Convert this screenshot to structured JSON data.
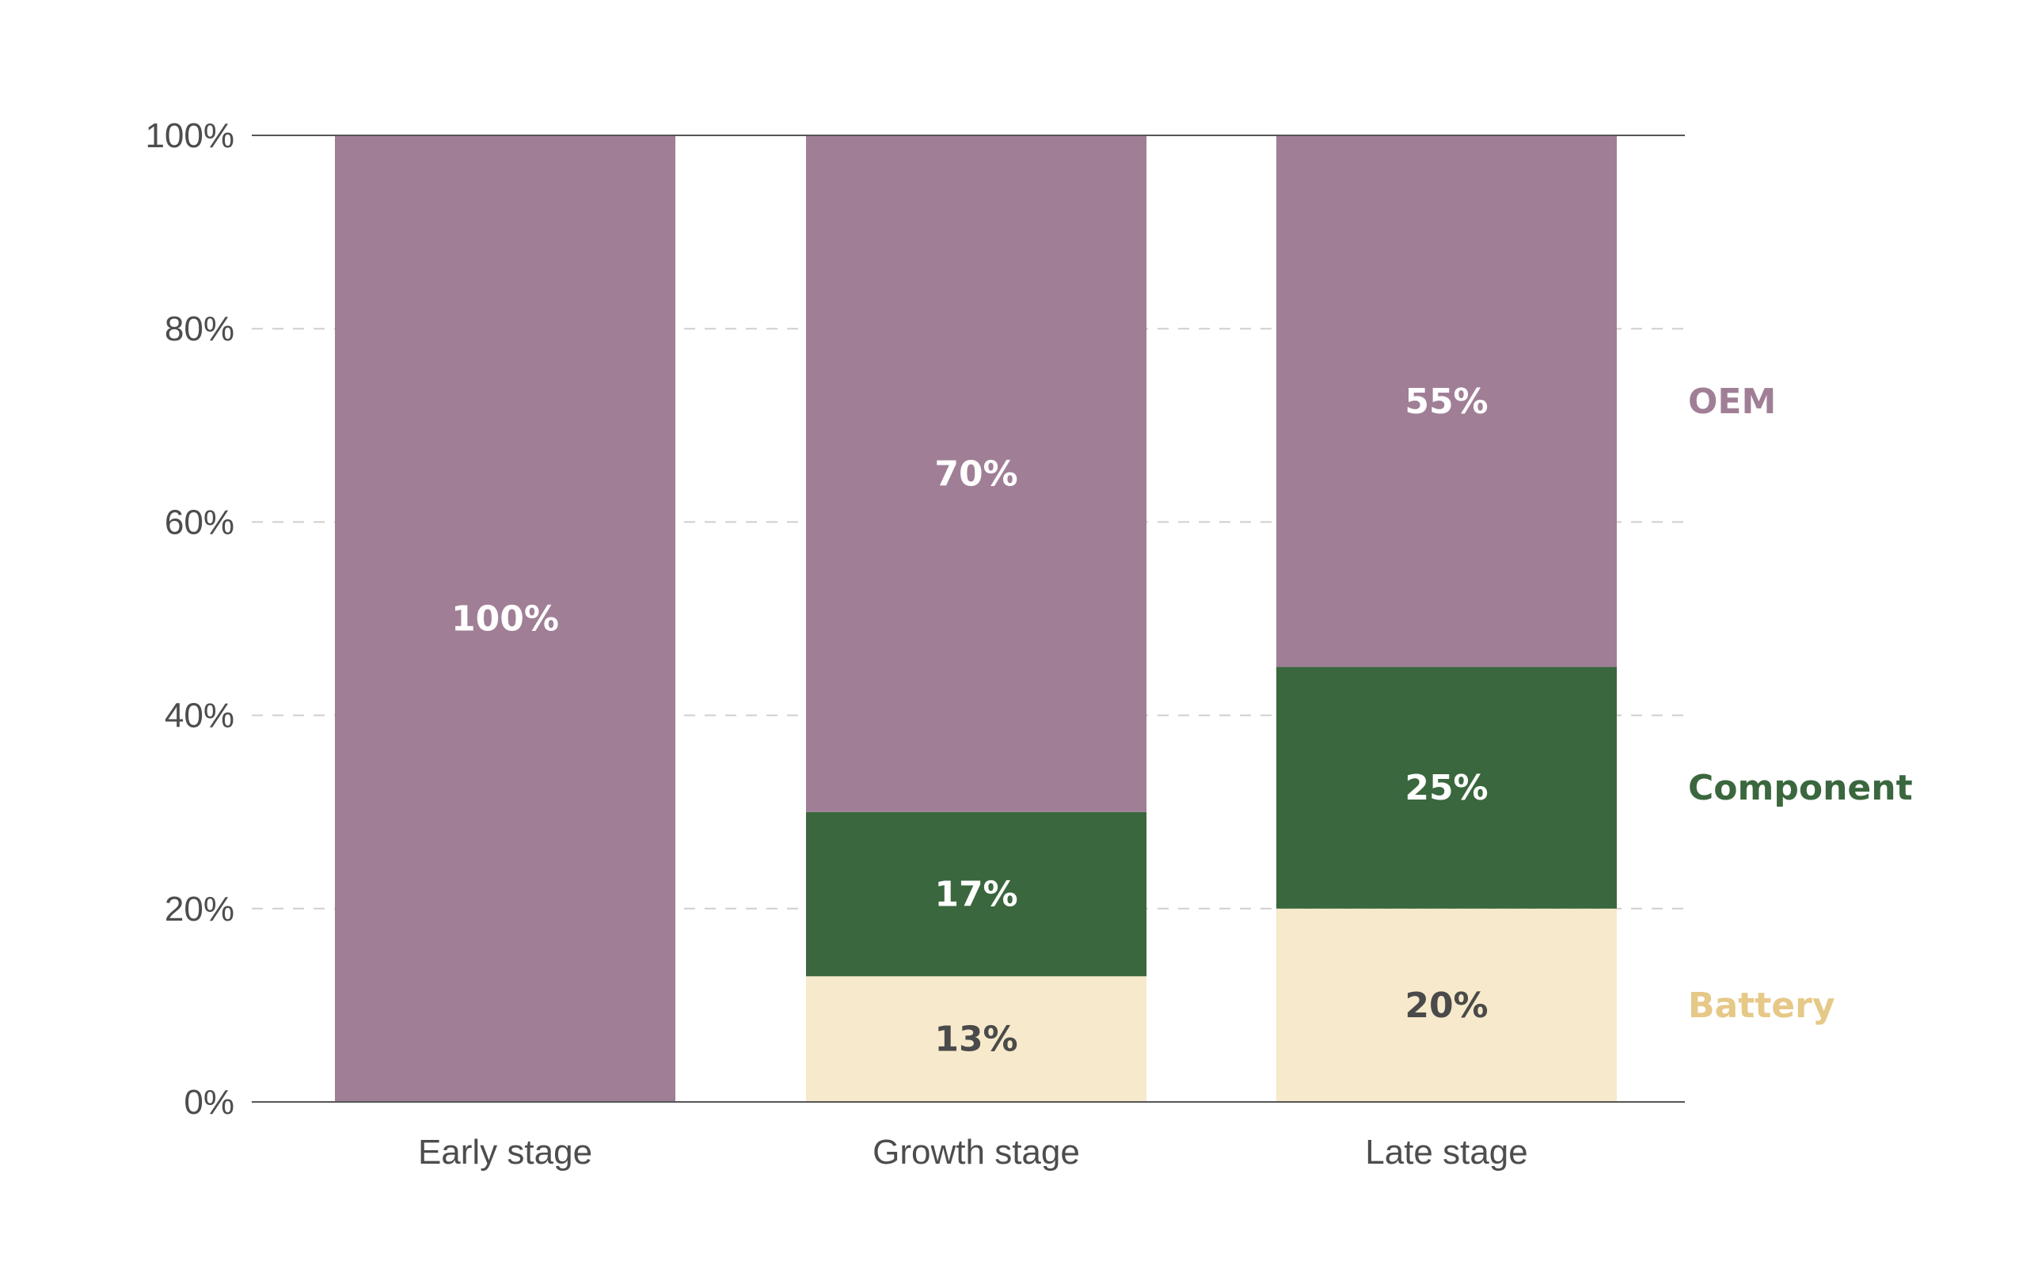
{
  "chart_data": {
    "type": "bar",
    "stacked": true,
    "categories": [
      "Early stage",
      "Growth stage",
      "Late stage"
    ],
    "series": [
      {
        "name": "Battery",
        "values": [
          0,
          13,
          20
        ],
        "color": "#f7e9cb",
        "label_color": "#e6c887",
        "text_color": "#4a4a4a"
      },
      {
        "name": "Component",
        "values": [
          0,
          17,
          25
        ],
        "color": "#3a673d",
        "label_color": "#3a673d",
        "text_color": "#ffffff"
      },
      {
        "name": "OEM",
        "values": [
          100,
          70,
          55
        ],
        "color": "#a07f96",
        "label_color": "#a07f96",
        "text_color": "#ffffff"
      }
    ],
    "data_labels": [
      [
        "",
        "13%",
        "20%"
      ],
      [
        "",
        "17%",
        "25%"
      ],
      [
        "100%",
        "70%",
        "55%"
      ]
    ],
    "y_ticks": [
      "0%",
      "20%",
      "40%",
      "60%",
      "80%",
      "100%"
    ],
    "ylim": [
      0,
      100
    ],
    "grid": true,
    "legend": "right, labels beside last bar"
  }
}
